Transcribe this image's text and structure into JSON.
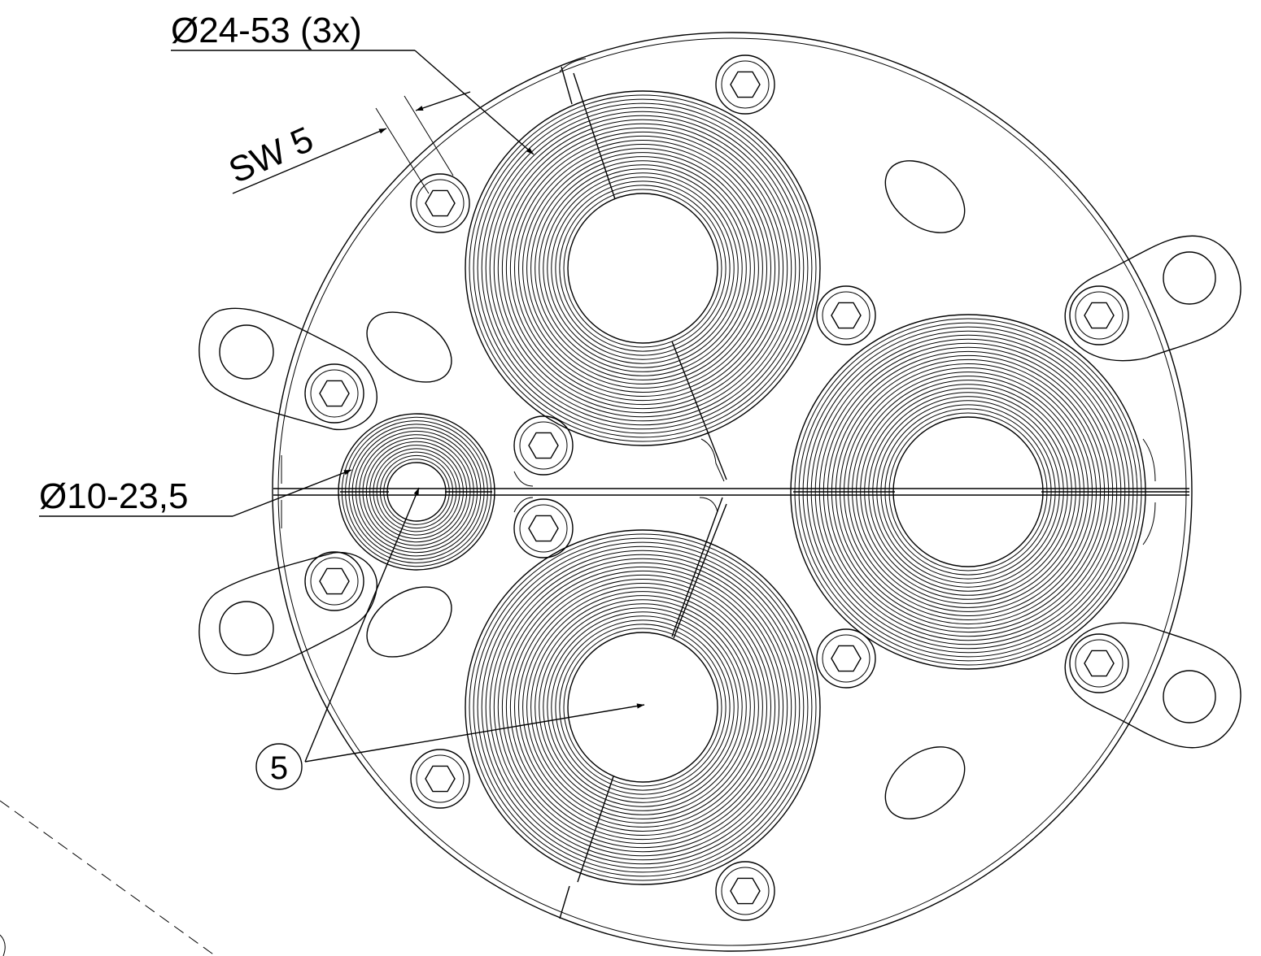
{
  "drawing": {
    "labels": {
      "dia_large": "Ø24-53 (3x)",
      "wrench_size": "SW 5",
      "dia_small": "Ø10-23,5",
      "item_number": "5"
    }
  }
}
